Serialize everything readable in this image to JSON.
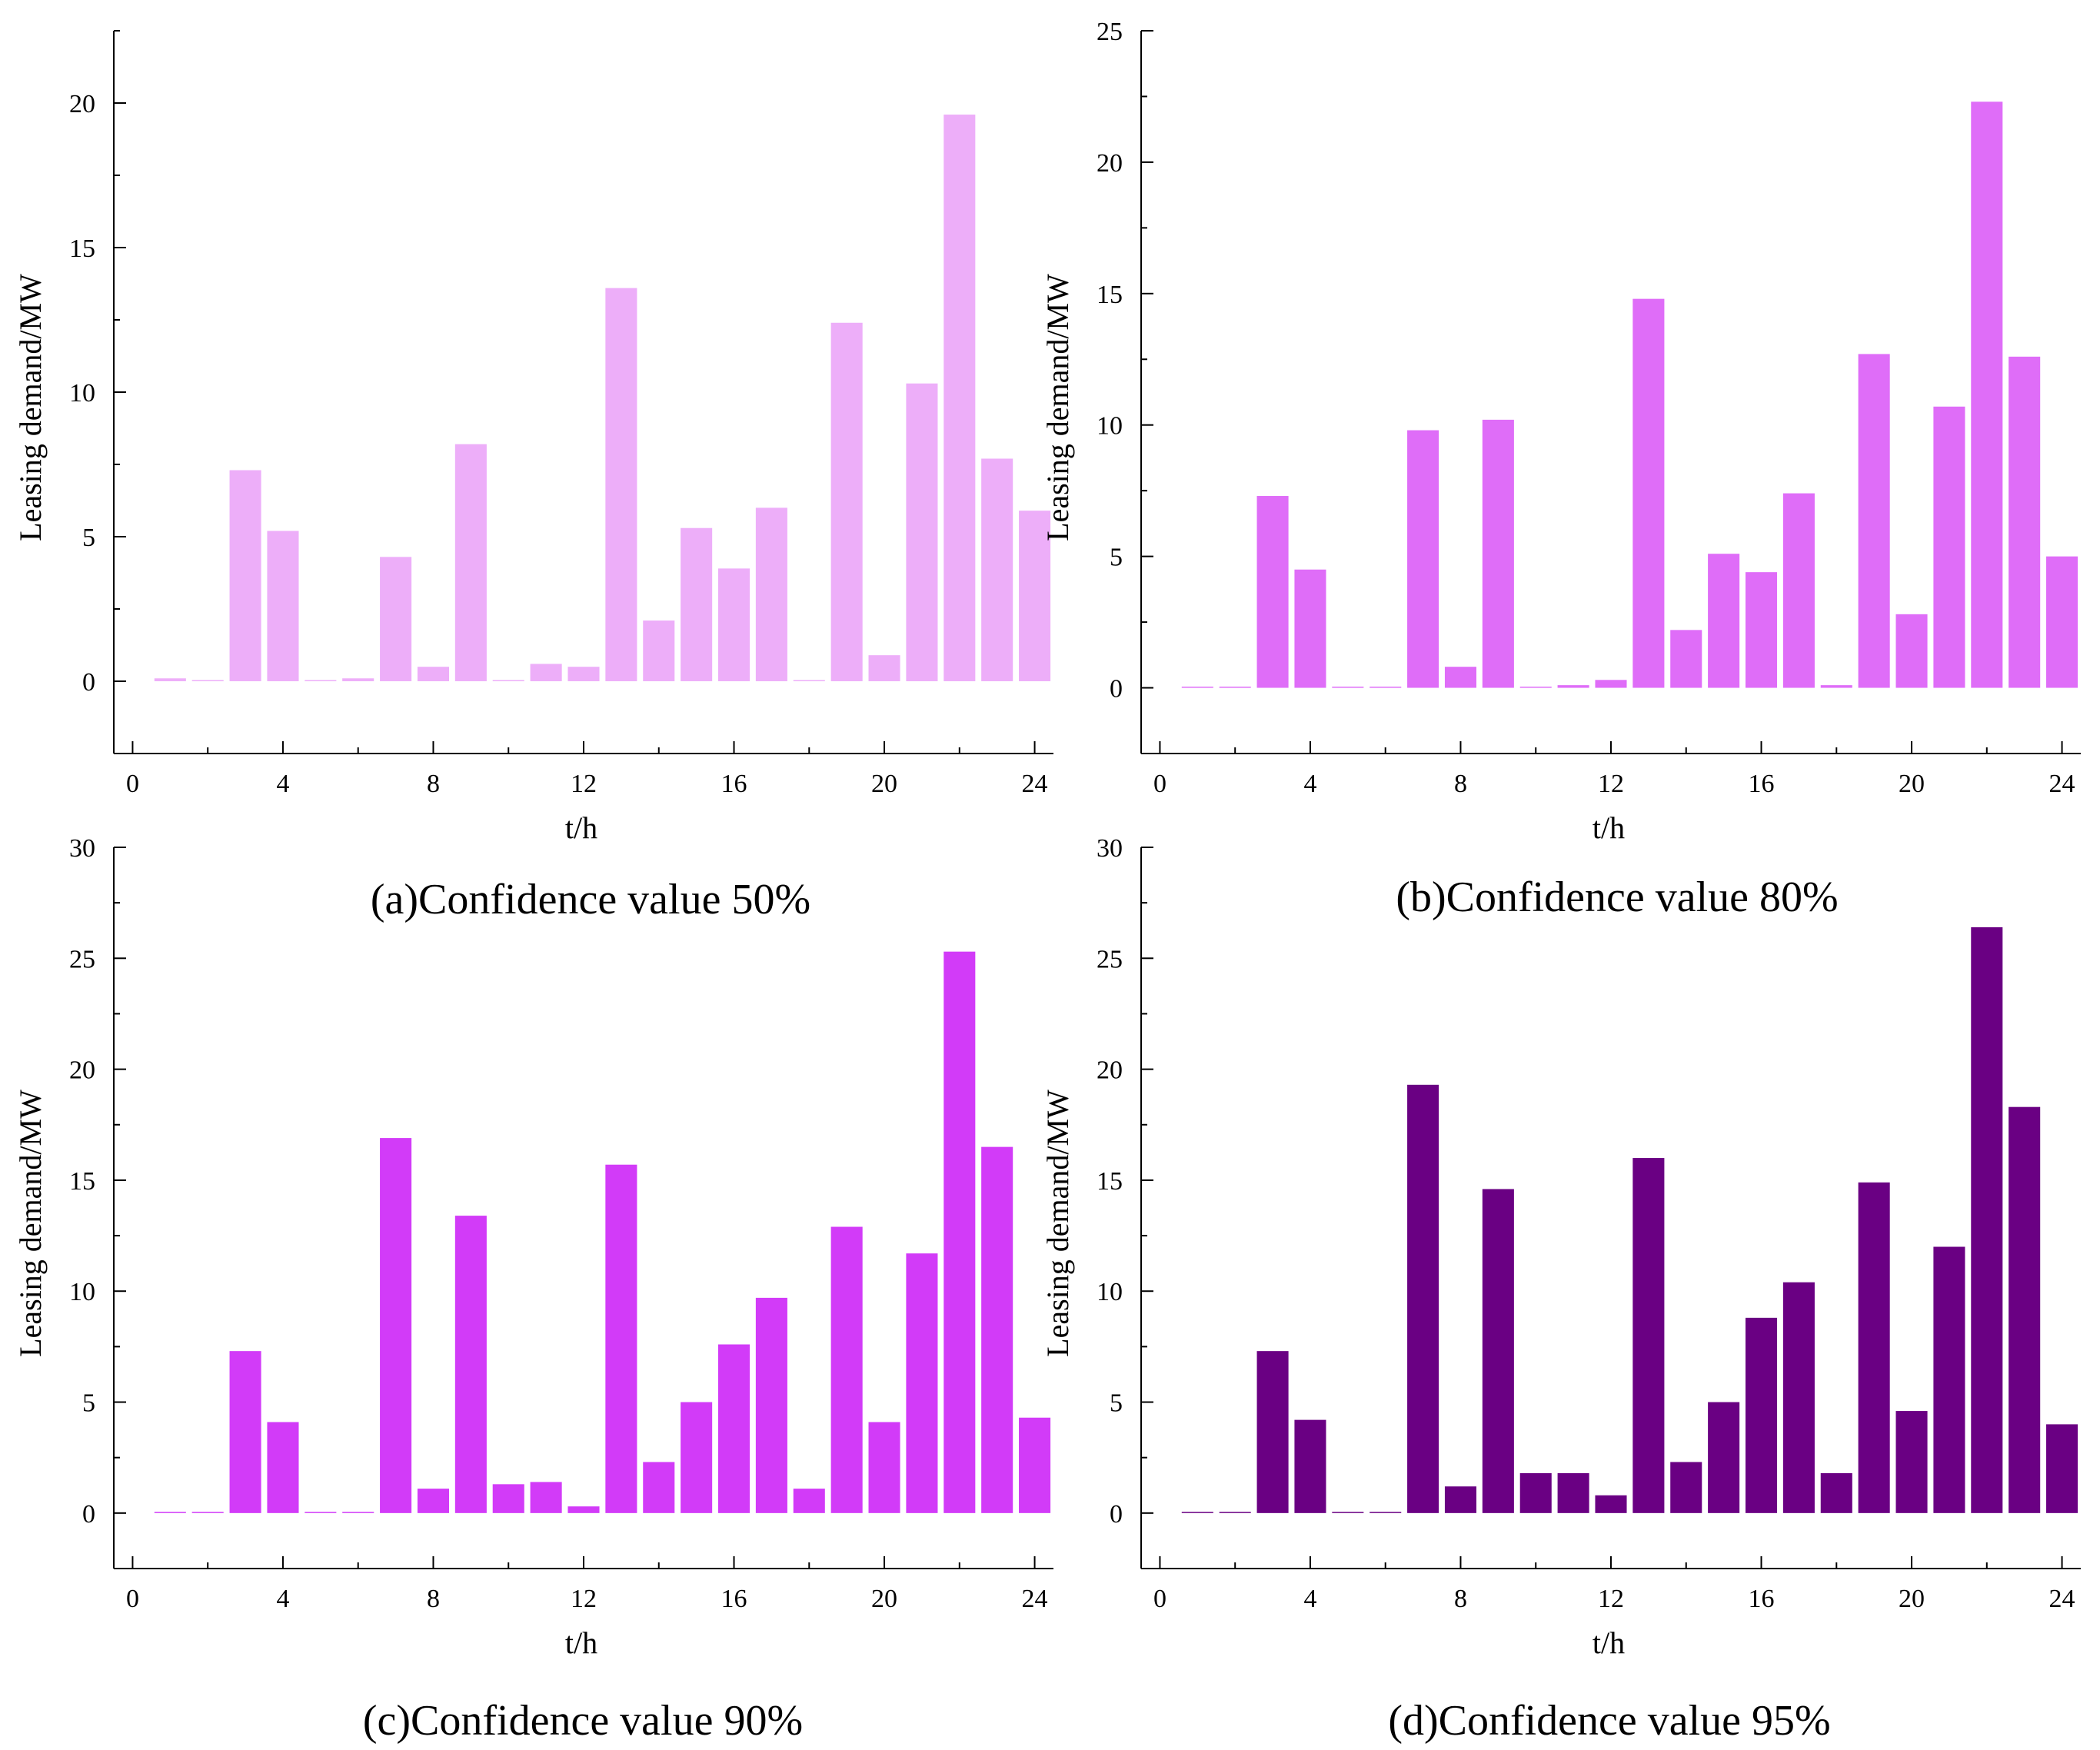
{
  "figure": {
    "panels": [
      "a",
      "b",
      "c",
      "d"
    ]
  },
  "chart_data": [
    {
      "type": "bar",
      "caption": "(a)Confidence value  50%",
      "xlabel": "t/h",
      "ylabel": "Leasing demand/MW",
      "color": "#EDAEF9",
      "xlim": [
        -0.5,
        24.5
      ],
      "ylim": [
        -2.5,
        22.5
      ],
      "xticks": [
        0,
        4,
        8,
        12,
        16,
        20,
        24
      ],
      "yticks": [
        0,
        5,
        10,
        15,
        20
      ],
      "x": [
        1,
        2,
        3,
        4,
        5,
        6,
        7,
        8,
        9,
        10,
        11,
        12,
        13,
        14,
        15,
        16,
        17,
        18,
        19,
        20,
        21,
        22,
        23,
        24
      ],
      "values": [
        0.1,
        0.0,
        7.3,
        5.2,
        0.0,
        0.1,
        4.3,
        0.5,
        8.2,
        0.0,
        0.6,
        0.5,
        13.6,
        2.1,
        5.3,
        3.9,
        6.0,
        0.0,
        12.4,
        0.9,
        10.3,
        19.6,
        7.7,
        5.9
      ]
    },
    {
      "type": "bar",
      "caption": "(b)Confidence value  80%",
      "xlabel": "t/h",
      "ylabel": "Leasing demand/MW",
      "color": "#DF6DF8",
      "xlim": [
        -0.5,
        24.5
      ],
      "ylim": [
        -2.5,
        25
      ],
      "xticks": [
        0,
        4,
        8,
        12,
        16,
        20,
        24
      ],
      "yticks": [
        0,
        5,
        10,
        15,
        20,
        25
      ],
      "x": [
        1,
        2,
        3,
        4,
        5,
        6,
        7,
        8,
        9,
        10,
        11,
        12,
        13,
        14,
        15,
        16,
        17,
        18,
        19,
        20,
        21,
        22,
        23,
        24
      ],
      "values": [
        0.0,
        0.0,
        7.3,
        4.5,
        0.0,
        0.0,
        9.8,
        0.8,
        10.2,
        0.0,
        0.1,
        0.3,
        14.8,
        2.2,
        5.1,
        4.4,
        7.4,
        0.1,
        12.7,
        2.8,
        10.7,
        22.3,
        12.6,
        5.0
      ]
    },
    {
      "type": "bar",
      "caption": "(c)Confidence value  90%",
      "xlabel": "t/h",
      "ylabel": "Leasing demand/MW",
      "color": "#D23BF8",
      "xlim": [
        -0.5,
        24.5
      ],
      "ylim": [
        -2.5,
        30
      ],
      "xticks": [
        0,
        4,
        8,
        12,
        16,
        20,
        24
      ],
      "yticks": [
        0,
        5,
        10,
        15,
        20,
        25,
        30
      ],
      "x": [
        1,
        2,
        3,
        4,
        5,
        6,
        7,
        8,
        9,
        10,
        11,
        12,
        13,
        14,
        15,
        16,
        17,
        18,
        19,
        20,
        21,
        22,
        23,
        24
      ],
      "values": [
        0.0,
        0.0,
        7.3,
        4.1,
        0.0,
        0.0,
        16.9,
        1.1,
        13.4,
        1.3,
        1.4,
        0.3,
        15.7,
        2.3,
        5.0,
        7.6,
        9.7,
        1.1,
        12.9,
        4.1,
        11.7,
        25.3,
        16.5,
        4.3
      ]
    },
    {
      "type": "bar",
      "caption": "(d)Confidence value  95%",
      "xlabel": "t/h",
      "ylabel": "Leasing demand/MW",
      "color": "#6A0083",
      "xlim": [
        -0.5,
        24.5
      ],
      "ylim": [
        -2.5,
        30
      ],
      "xticks": [
        0,
        4,
        8,
        12,
        16,
        20,
        24
      ],
      "yticks": [
        0,
        5,
        10,
        15,
        20,
        25,
        30
      ],
      "x": [
        1,
        2,
        3,
        4,
        5,
        6,
        7,
        8,
        9,
        10,
        11,
        12,
        13,
        14,
        15,
        16,
        17,
        18,
        19,
        20,
        21,
        22,
        23,
        24
      ],
      "values": [
        0.0,
        0.0,
        7.3,
        4.2,
        0.0,
        0.0,
        19.3,
        1.2,
        14.6,
        1.8,
        1.8,
        0.8,
        16.0,
        2.3,
        5.0,
        8.8,
        10.4,
        1.8,
        14.9,
        4.6,
        12.0,
        26.4,
        18.3,
        4.0
      ]
    }
  ]
}
